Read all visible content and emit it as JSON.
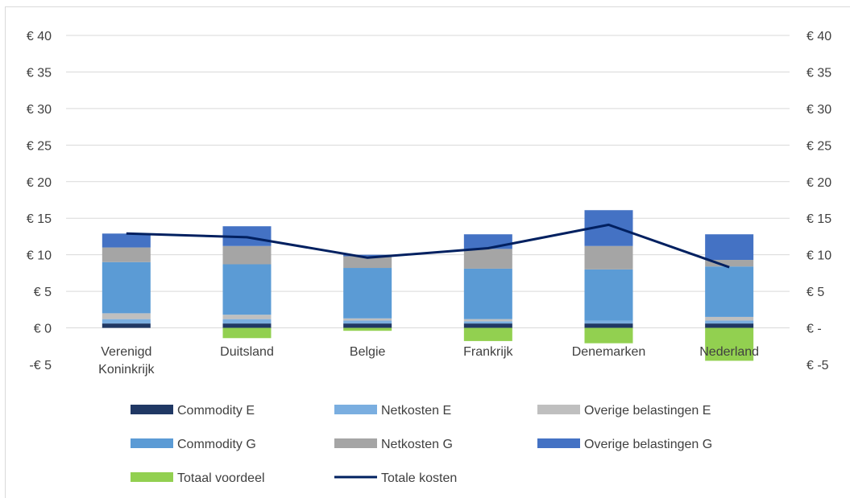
{
  "chart_data": {
    "type": "bar",
    "stacked": true,
    "categories": [
      [
        "Verenigd",
        "Koninkrijk"
      ],
      [
        "Duitsland"
      ],
      [
        "Belgie"
      ],
      [
        "Frankrijk"
      ],
      [
        "Denemarken"
      ],
      [
        "Nederland"
      ]
    ],
    "ylim": [
      -5,
      40
    ],
    "yticks": [
      -5,
      0,
      5,
      10,
      15,
      20,
      25,
      30,
      35,
      40
    ],
    "left_tick_labels": [
      "-€ 5",
      "€ 0",
      "€ 5",
      "€ 10",
      "€ 15",
      "€ 20",
      "€ 25",
      "€ 30",
      "€ 35",
      "€ 40"
    ],
    "right_tick_labels": [
      "€ -5",
      "€ -",
      "€ 5",
      "€ 10",
      "€ 15",
      "€ 20",
      "€ 25",
      "€ 30",
      "€ 35",
      "€ 40"
    ],
    "gridlines": true,
    "legend_position": "bottom",
    "series": [
      {
        "name": "Commodity E",
        "color": "#203864",
        "values": [
          0.6,
          0.6,
          0.6,
          0.6,
          0.6,
          0.6
        ]
      },
      {
        "name": "Netkosten E",
        "color": "#7aaee0",
        "values": [
          0.6,
          0.6,
          0.4,
          0.3,
          0.4,
          0.4
        ]
      },
      {
        "name": "Overige belastingen E",
        "color": "#bfbfbf",
        "values": [
          0.8,
          0.6,
          0.3,
          0.3,
          0.0,
          0.5
        ]
      },
      {
        "name": "Commodity G",
        "color": "#5b9bd5",
        "values": [
          7.0,
          6.9,
          6.9,
          6.9,
          7.0,
          6.9
        ]
      },
      {
        "name": "Netkosten G",
        "color": "#a5a5a5",
        "values": [
          2.0,
          2.5,
          1.6,
          2.7,
          3.2,
          0.9
        ]
      },
      {
        "name": "Overige belastingen G",
        "color": "#4472c4",
        "values": [
          1.9,
          2.7,
          0.2,
          2.0,
          4.9,
          3.5
        ]
      },
      {
        "name": "Totaal voordeel",
        "color": "#92d050",
        "values": [
          0,
          -1.4,
          -0.4,
          -1.8,
          -2.1,
          -4.5
        ]
      }
    ],
    "line_series": {
      "name": "Totale kosten",
      "color": "#002060",
      "values": [
        12.9,
        12.4,
        9.6,
        10.9,
        14.1,
        8.3
      ]
    }
  }
}
